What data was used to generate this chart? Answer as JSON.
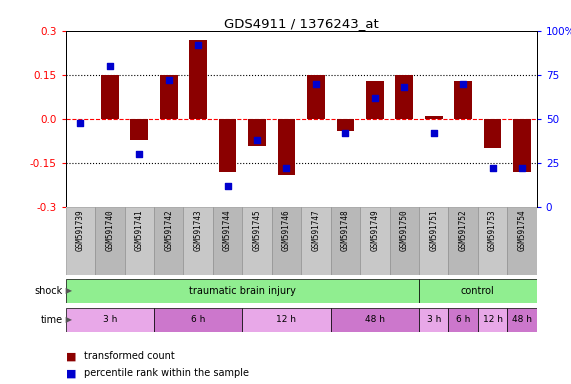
{
  "title": "GDS4911 / 1376243_at",
  "samples": [
    "GSM591739",
    "GSM591740",
    "GSM591741",
    "GSM591742",
    "GSM591743",
    "GSM591744",
    "GSM591745",
    "GSM591746",
    "GSM591747",
    "GSM591748",
    "GSM591749",
    "GSM591750",
    "GSM591751",
    "GSM591752",
    "GSM591753",
    "GSM591754"
  ],
  "bar_values": [
    0.0,
    0.15,
    -0.07,
    0.15,
    0.27,
    -0.18,
    -0.09,
    -0.19,
    0.15,
    -0.04,
    0.13,
    0.15,
    0.01,
    0.13,
    -0.1,
    -0.18
  ],
  "dot_values": [
    48,
    80,
    30,
    72,
    92,
    12,
    38,
    22,
    70,
    42,
    62,
    68,
    42,
    70,
    22,
    22
  ],
  "bar_color": "#8B0000",
  "dot_color": "#0000CD",
  "ylim_left": [
    -0.3,
    0.3
  ],
  "ylim_right": [
    0,
    100
  ],
  "yticks_left": [
    -0.3,
    -0.15,
    0.0,
    0.15,
    0.3
  ],
  "yticks_right": [
    0,
    25,
    50,
    75,
    100
  ],
  "ytick_labels_right": [
    "0",
    "25",
    "50",
    "75",
    "100%"
  ],
  "hlines_dotted": [
    -0.15,
    0.15
  ],
  "hline_dashed": 0.0,
  "time_segs_injury": [
    {
      "label": "3 h",
      "start": 0,
      "end": 3,
      "color": "#E8A8E8"
    },
    {
      "label": "6 h",
      "start": 3,
      "end": 6,
      "color": "#CC77CC"
    },
    {
      "label": "12 h",
      "start": 6,
      "end": 9,
      "color": "#E8A8E8"
    },
    {
      "label": "48 h",
      "start": 9,
      "end": 12,
      "color": "#CC77CC"
    }
  ],
  "time_segs_control": [
    {
      "label": "3 h",
      "start": 12,
      "end": 13,
      "color": "#E8A8E8"
    },
    {
      "label": "6 h",
      "start": 13,
      "end": 14,
      "color": "#CC77CC"
    },
    {
      "label": "12 h",
      "start": 14,
      "end": 15,
      "color": "#E8A8E8"
    },
    {
      "label": "48 h",
      "start": 15,
      "end": 16,
      "color": "#CC77CC"
    }
  ],
  "shock_tbi": {
    "label": "traumatic brain injury",
    "start": 0,
    "end": 12,
    "color": "#90EE90"
  },
  "shock_ctrl": {
    "label": "control",
    "start": 12,
    "end": 16,
    "color": "#90EE90"
  },
  "legend_items": [
    {
      "label": "transformed count",
      "color": "#8B0000"
    },
    {
      "label": "percentile rank within the sample",
      "color": "#0000CD"
    }
  ]
}
